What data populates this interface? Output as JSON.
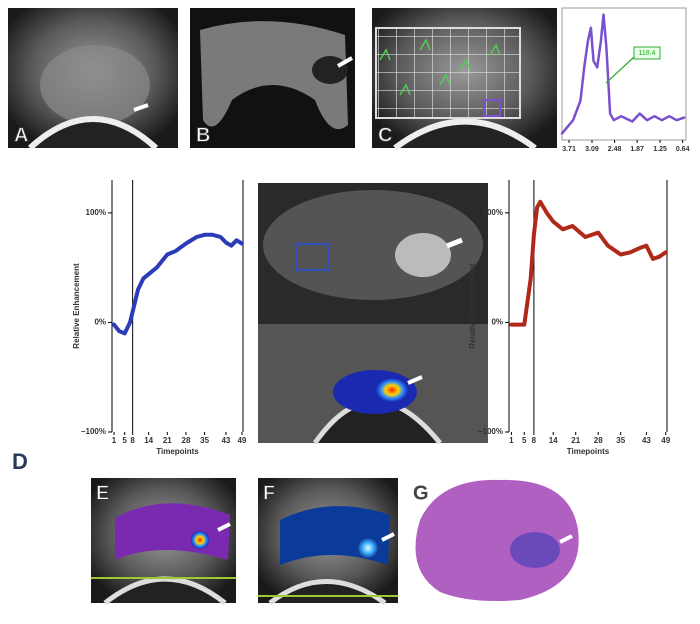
{
  "panels": [
    "A",
    "B",
    "C",
    "D",
    "E",
    "F",
    "G"
  ],
  "chart_data": [
    {
      "type": "line",
      "annotation": "118.4",
      "x": [
        3.9,
        3.6,
        3.4,
        3.3,
        3.2,
        3.12,
        3.05,
        2.95,
        2.85,
        2.78,
        2.7,
        2.6,
        2.5,
        2.3,
        2.0,
        1.8,
        1.6,
        1.4,
        1.2,
        1.0,
        0.8,
        0.6
      ],
      "values": [
        0.05,
        0.15,
        0.3,
        0.55,
        0.75,
        0.85,
        0.6,
        0.55,
        0.75,
        0.95,
        0.7,
        0.2,
        0.15,
        0.18,
        0.14,
        0.2,
        0.15,
        0.18,
        0.15,
        0.18,
        0.15,
        0.17
      ],
      "color": "#7a4fd0",
      "xlim": [
        3.9,
        0.55
      ],
      "ylim": [
        0,
        1
      ],
      "xticks": [
        3.71,
        3.09,
        2.48,
        1.87,
        1.25,
        0.64
      ]
    },
    {
      "type": "line",
      "xlabel": "Timepoints",
      "ylabel": "Relative Enhancement",
      "x": [
        1,
        3,
        5,
        7,
        8,
        10,
        12,
        14,
        17,
        21,
        24,
        28,
        32,
        35,
        38,
        41,
        43,
        45,
        47,
        49
      ],
      "values": [
        -2,
        -8,
        -10,
        0,
        10,
        30,
        40,
        44,
        50,
        62,
        65,
        72,
        78,
        80,
        80,
        78,
        73,
        70,
        75,
        72
      ],
      "color": "#2a3cb8",
      "vline": 8,
      "xlim": [
        0.25,
        49.4
      ],
      "ylim": [
        -100,
        130
      ],
      "xticks": [
        1,
        5,
        8,
        14,
        21,
        28,
        35,
        43,
        49
      ],
      "yticks": [
        {
          "value": 100,
          "label": "100%"
        },
        {
          "value": 0,
          "label": "0%"
        },
        {
          "value": -100,
          "label": "−100%"
        }
      ]
    },
    {
      "type": "line",
      "xlabel": "Timepoints",
      "ylabel": "Relative Enhancement",
      "x": [
        1,
        5,
        7,
        8,
        9,
        10,
        12,
        14,
        17,
        20,
        24,
        28,
        31,
        35,
        38,
        41,
        43,
        45,
        47,
        49
      ],
      "values": [
        -2,
        -2,
        40,
        80,
        105,
        110,
        100,
        92,
        85,
        88,
        78,
        82,
        70,
        62,
        64,
        68,
        70,
        58,
        60,
        64
      ],
      "color": "#b02818",
      "vline": 8,
      "xlim": [
        0.25,
        49.4
      ],
      "ylim": [
        -100,
        130
      ],
      "xticks": [
        1,
        5,
        8,
        14,
        21,
        28,
        35,
        43,
        49
      ],
      "yticks": [
        {
          "value": 100,
          "label": "100%"
        },
        {
          "value": 0,
          "label": "0%"
        },
        {
          "value": -100,
          "label": "−100%"
        }
      ]
    }
  ]
}
